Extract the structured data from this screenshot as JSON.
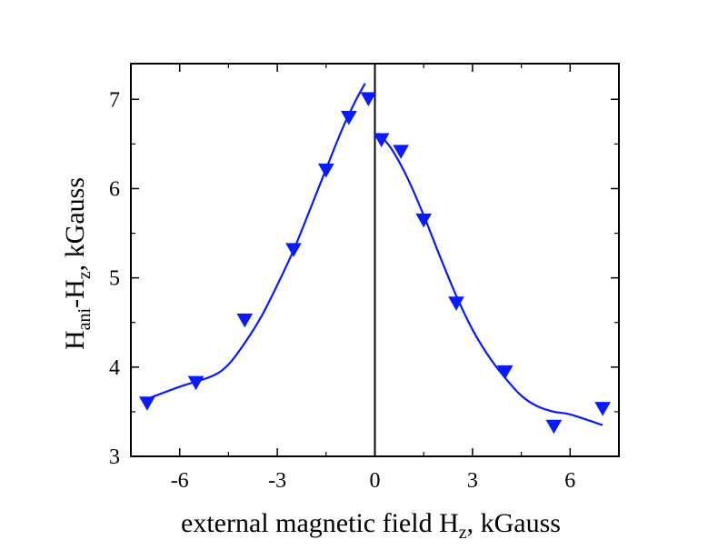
{
  "chart_data": {
    "type": "scatter",
    "title": "",
    "xlabel": {
      "main": "external magnetic field H",
      "sub": "z",
      "rest": ", kGauss"
    },
    "ylabel": {
      "main": "H",
      "sub": "ani",
      "mid": "-H",
      "sub2": "z",
      "rest": ", kGauss"
    },
    "xlim": [
      -7.5,
      7.5
    ],
    "ylim": [
      3,
      7.4
    ],
    "x_ticks": [
      -6,
      -3,
      0,
      3,
      6
    ],
    "x_tick_labels": [
      "-6",
      "-3",
      "0",
      "3",
      "6"
    ],
    "y_ticks": [
      3,
      4,
      5,
      6,
      7
    ],
    "y_tick_labels": [
      "3",
      "4",
      "5",
      "6",
      "7"
    ],
    "vertical_reference_line_x": 0,
    "grid": false,
    "legend": "none",
    "series": [
      {
        "kind": "points",
        "marker": "down-triangle",
        "color": "#0a1aff",
        "x": [
          -7.0,
          -5.5,
          -4.0,
          -2.5,
          -1.5,
          -0.8,
          -0.2,
          0.2,
          0.8,
          1.5,
          2.5,
          4.0,
          5.5,
          7.0
        ],
        "y": [
          3.6,
          3.83,
          4.53,
          5.32,
          6.21,
          6.8,
          7.01,
          6.55,
          6.42,
          5.65,
          4.72,
          3.95,
          3.34,
          3.54
        ]
      },
      {
        "kind": "fit-left",
        "color": "#0a1aff",
        "x": [
          -7.1,
          -6.0,
          -5.0,
          -4.5,
          -4.0,
          -3.5,
          -3.0,
          -2.5,
          -2.0,
          -1.5,
          -1.0,
          -0.6,
          -0.3
        ],
        "y": [
          3.63,
          3.78,
          3.9,
          4.03,
          4.27,
          4.56,
          4.92,
          5.31,
          5.76,
          6.22,
          6.67,
          6.98,
          7.18
        ]
      },
      {
        "kind": "fit-right",
        "color": "#0a1aff",
        "x": [
          0.1,
          0.5,
          1.0,
          1.5,
          2.0,
          2.5,
          3.0,
          3.5,
          4.0,
          4.5,
          5.0,
          5.5,
          6.0,
          7.0
        ],
        "y": [
          6.62,
          6.45,
          6.12,
          5.7,
          5.24,
          4.8,
          4.42,
          4.12,
          3.88,
          3.68,
          3.56,
          3.5,
          3.47,
          3.35
        ]
      }
    ]
  }
}
